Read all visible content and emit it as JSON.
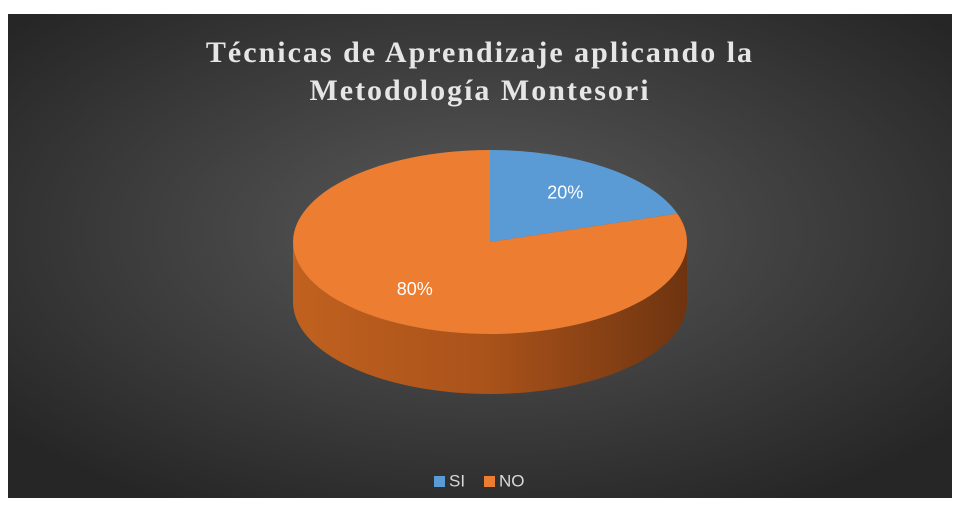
{
  "chart_data": {
    "type": "pie3d",
    "title": "Técnicas de Aprendizaje aplicando la Metodología Montesori",
    "categories": [
      "SI",
      "NO"
    ],
    "values": [
      20,
      80
    ],
    "value_labels": [
      "20%",
      "80%"
    ],
    "colors": [
      "#5b9bd5",
      "#ed7d31"
    ],
    "legend": "bottom"
  }
}
